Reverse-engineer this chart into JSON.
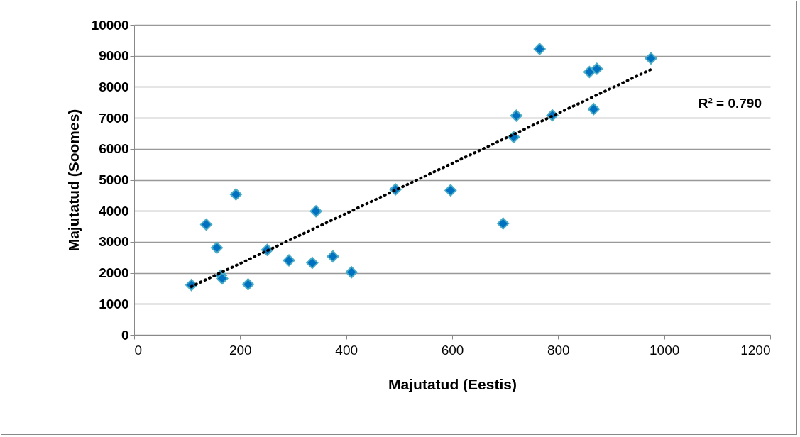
{
  "chart_data": {
    "type": "scatter",
    "xlabel": "Majutatud (Eestis)",
    "ylabel": "Majutatud (Soomes)",
    "xlim": [
      0,
      1200
    ],
    "xticks": [
      0,
      200,
      400,
      600,
      800,
      1000,
      1200
    ],
    "ylim": [
      0,
      10000
    ],
    "yticks": [
      0,
      1000,
      2000,
      3000,
      4000,
      5000,
      6000,
      7000,
      8000,
      9000,
      10000
    ],
    "grid": "y",
    "marker": "diamond",
    "series": [
      {
        "color": "#0070c0",
        "x": [
          108,
          136,
          156,
          164,
          166,
          192,
          215,
          251,
          292,
          336,
          343,
          375,
          410,
          493,
          597,
          696,
          716,
          721,
          765,
          789,
          859,
          867,
          873,
          975
        ],
        "values": [
          1610,
          3560,
          2810,
          1920,
          1820,
          4530,
          1630,
          2740,
          2400,
          2320,
          3990,
          2530,
          2020,
          4690,
          4660,
          3590,
          6380,
          7070,
          9220,
          7080,
          8480,
          7280,
          8580,
          8920
        ]
      },
      {
        "type": "line",
        "color": "#000000",
        "line_style": "dotted",
        "marker": "none",
        "x": [
          108,
          975
        ],
        "values": [
          1560,
          8560
        ]
      }
    ],
    "annotations": [
      "R² = 0.790"
    ]
  }
}
